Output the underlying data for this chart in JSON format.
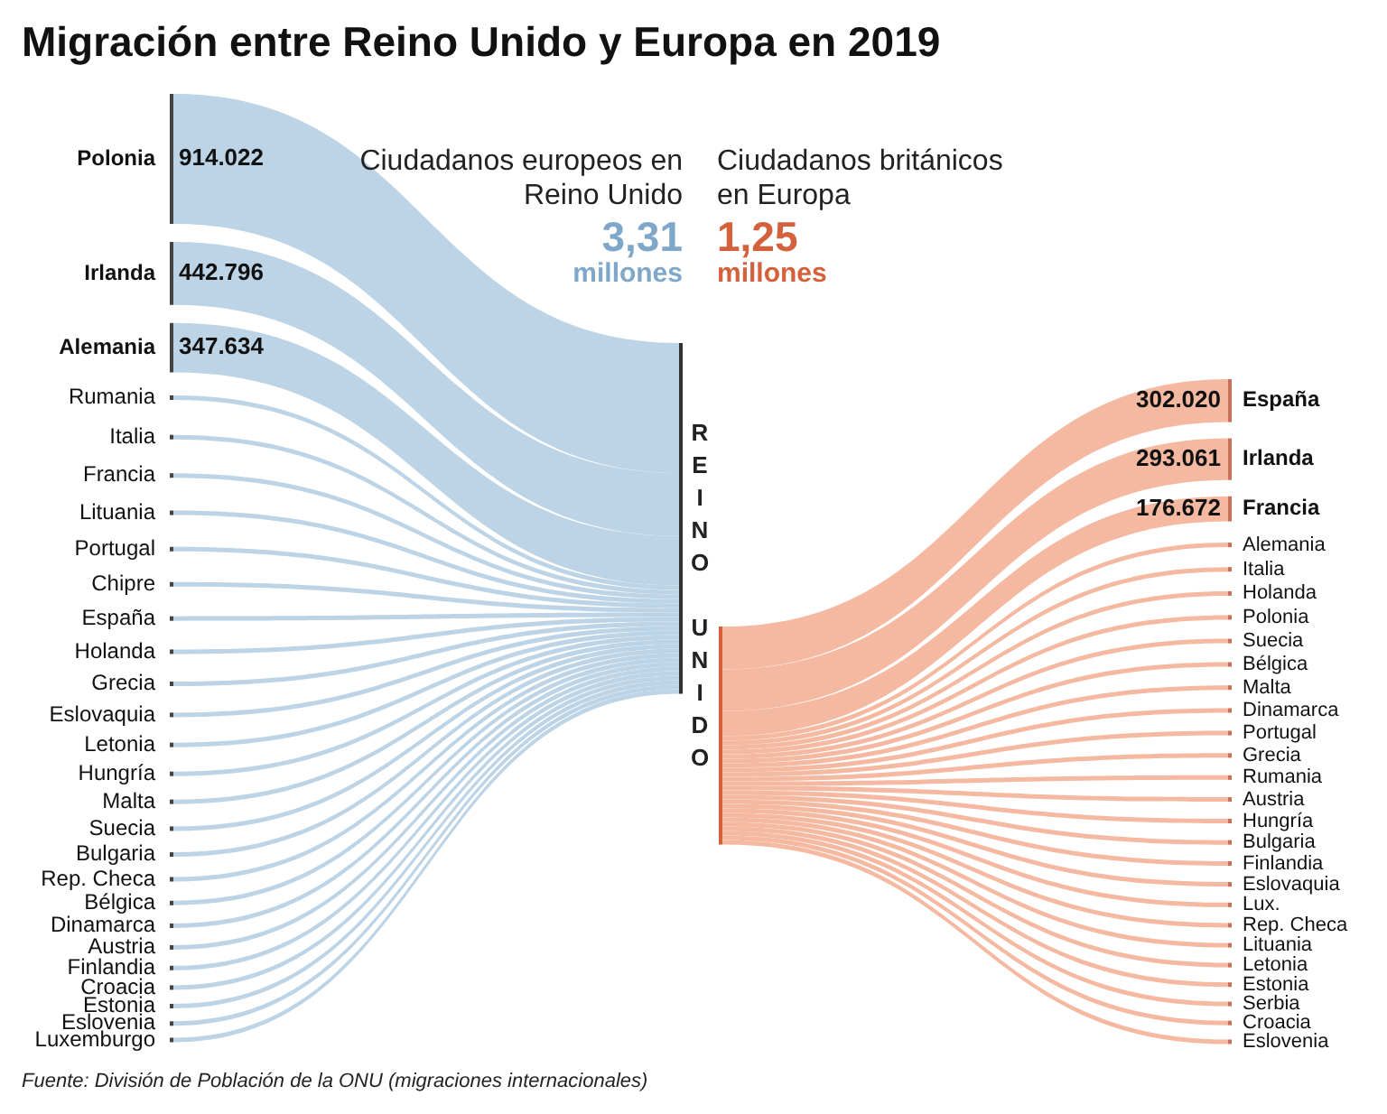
{
  "chart_data": [
    {
      "type": "other",
      "title": "Migración entre Reino Unido y Europa en 2019",
      "categories": [
        "Polonia",
        "Irlanda",
        "Alemania",
        "Rumania",
        "Italia",
        "Francia",
        "Lituania",
        "Portugal",
        "Chipre",
        "España",
        "Holanda",
        "Grecia",
        "Eslovaquia",
        "Letonia",
        "Hungría",
        "Malta",
        "Suecia",
        "Bulgaria",
        "Rep. Checa",
        "Bélgica",
        "Dinamarca",
        "Austria",
        "Finlandia",
        "Croacia",
        "Estonia",
        "Eslovenia",
        "Luxemburgo"
      ],
      "values": [
        914022,
        442796,
        347634,
        null,
        null,
        null,
        null,
        null,
        null,
        null,
        null,
        null,
        null,
        null,
        null,
        null,
        null,
        null,
        null,
        null,
        null,
        null,
        null,
        null,
        null,
        null,
        null
      ],
      "value_labels": [
        "914.022",
        "442.796",
        "347.634",
        null,
        null,
        null,
        null,
        null,
        null,
        null,
        null,
        null,
        null,
        null,
        null,
        null,
        null,
        null,
        null,
        null,
        null,
        null,
        null,
        null,
        null,
        null,
        null
      ],
      "color": "#bcd4e6",
      "annotations": [
        "Ciudadanos europeos en Reino Unido",
        "3,31",
        "millones",
        "REINO UNIDO",
        "Fuente: División de Población de la ONU (migraciones internacionales)"
      ]
    },
    {
      "type": "other",
      "categories": [
        "España",
        "Irlanda",
        "Francia",
        "Alemania",
        "Italia",
        "Holanda",
        "Polonia",
        "Suecia",
        "Bélgica",
        "Malta",
        "Dinamarca",
        "Portugal",
        "Grecia",
        "Rumania",
        "Austria",
        "Hungría",
        "Bulgaria",
        "Finlandia",
        "Eslovaquia",
        "Lux.",
        "Rep. Checa",
        "Lituania",
        "Letonia",
        "Estonia",
        "Serbia",
        "Croacia",
        "Eslovenia"
      ],
      "values": [
        302020,
        293061,
        176672,
        null,
        null,
        null,
        null,
        null,
        null,
        null,
        null,
        null,
        null,
        null,
        null,
        null,
        null,
        null,
        null,
        null,
        null,
        null,
        null,
        null,
        null,
        null,
        null
      ],
      "value_labels": [
        "302.020",
        "293.061",
        "176.672",
        null,
        null,
        null,
        null,
        null,
        null,
        null,
        null,
        null,
        null,
        null,
        null,
        null,
        null,
        null,
        null,
        null,
        null,
        null,
        null,
        null,
        null,
        null,
        null
      ],
      "color": "#f4b9a0",
      "annotations": [
        "Ciudadanos británicos en Europa",
        "1,25",
        "millones"
      ]
    }
  ]
}
